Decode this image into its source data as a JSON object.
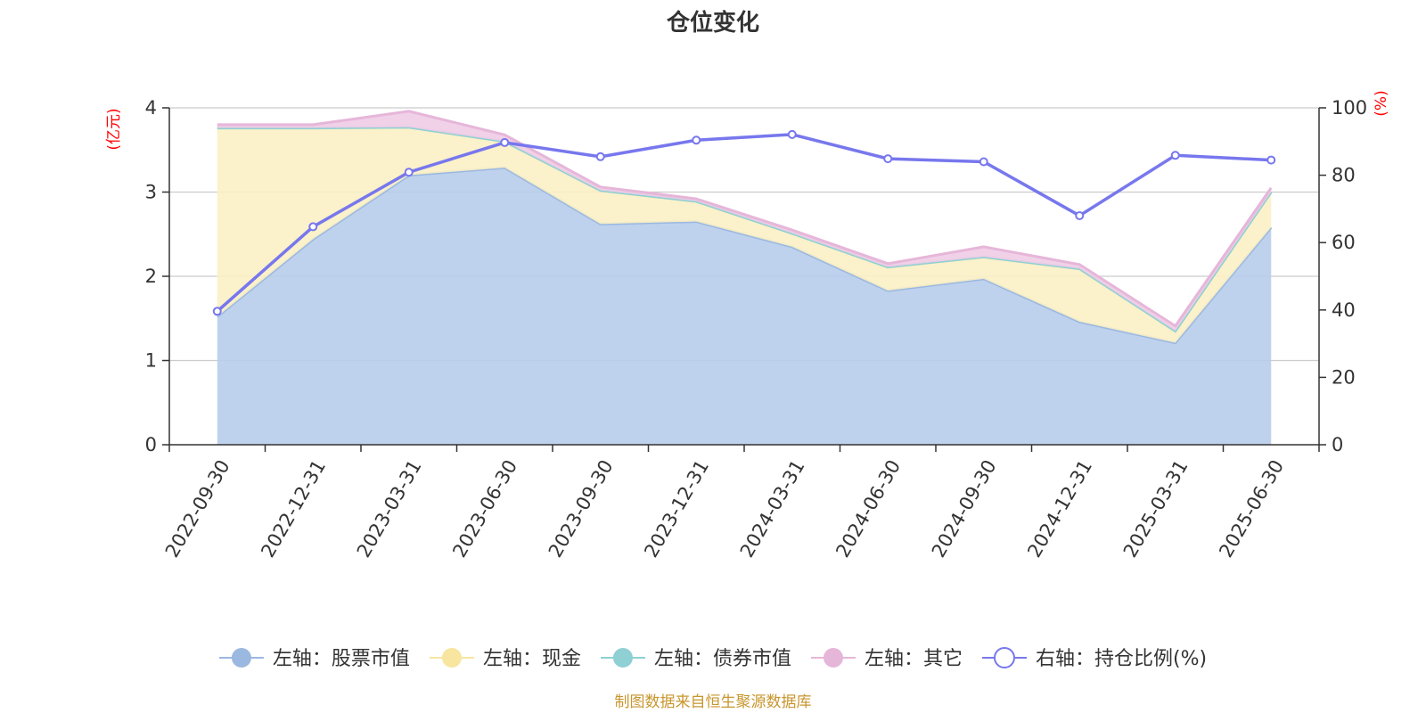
{
  "chart_data": {
    "type": "area",
    "title": "仓位变化",
    "left_axis_unit": "(亿元)",
    "right_axis_unit": "(%)",
    "categories": [
      "2022-09-30",
      "2022-12-31",
      "2023-03-31",
      "2023-06-30",
      "2023-09-30",
      "2023-12-31",
      "2024-03-31",
      "2024-06-30",
      "2024-09-30",
      "2024-12-31",
      "2025-03-31",
      "2025-06-30"
    ],
    "ylim_left": [
      0,
      4
    ],
    "yticks_left": [
      "0",
      "1",
      "2",
      "3",
      "4"
    ],
    "ylim_right": [
      0,
      100
    ],
    "yticks_right": [
      "0",
      "20",
      "40",
      "60",
      "80",
      "100"
    ],
    "grid": true,
    "legend_position": "bottom",
    "series": [
      {
        "name": "左轴：股票市值",
        "axis": "left",
        "kind": "stacked-area",
        "color": "#9ab8e0",
        "fill": "#b8cdeb",
        "values": [
          1.52,
          2.44,
          3.2,
          3.29,
          2.62,
          2.65,
          2.35,
          1.83,
          1.97,
          1.46,
          1.21,
          2.58
        ]
      },
      {
        "name": "左轴：现金",
        "axis": "left",
        "kind": "stacked-area",
        "color": "#f7e5a0",
        "fill": "#fbefc4",
        "values": [
          2.24,
          1.32,
          0.57,
          0.31,
          0.4,
          0.24,
          0.16,
          0.28,
          0.26,
          0.63,
          0.14,
          0.42
        ]
      },
      {
        "name": "左轴：债券市值",
        "axis": "left",
        "kind": "stacked-area",
        "color": "#8fd0d4",
        "fill": "#b7e3e6",
        "values": [
          0,
          0,
          0,
          0,
          0,
          0,
          0,
          0,
          0,
          0,
          0,
          0
        ]
      },
      {
        "name": "左轴：其它",
        "axis": "left",
        "kind": "stacked-area",
        "color": "#e6b6d9",
        "fill": "#efcce6",
        "values": [
          0.04,
          0.04,
          0.19,
          0.08,
          0.04,
          0.03,
          0.04,
          0.04,
          0.12,
          0.05,
          0.06,
          0.05
        ]
      },
      {
        "name": "右轴：持仓比例(%)",
        "axis": "right",
        "kind": "line",
        "color": "#7777ee",
        "values": [
          39.6,
          64.7,
          80.9,
          89.7,
          85.5,
          90.4,
          92.1,
          84.9,
          84.0,
          68.0,
          85.9,
          84.5
        ]
      }
    ],
    "source": "制图数据来自恒生聚源数据库"
  }
}
